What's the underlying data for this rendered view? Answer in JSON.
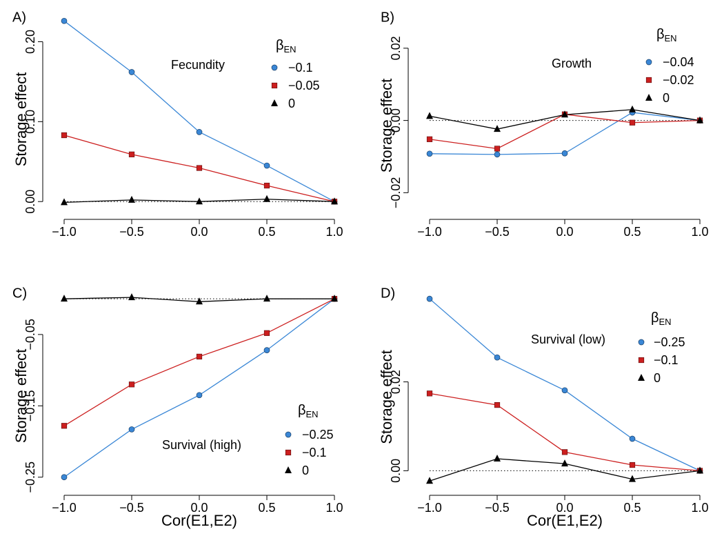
{
  "chart_data": [
    {
      "panel_label": "A)",
      "type": "line",
      "ylabel": "Storage effect",
      "xlabel": "",
      "x": [
        -1.0,
        -0.5,
        0.0,
        0.5,
        1.0
      ],
      "xticks": [
        "−1.0",
        "−0.5",
        "0.0",
        "0.5",
        "1.0"
      ],
      "xlim": [
        -1.0,
        1.0
      ],
      "ylim": [
        -0.005,
        0.228
      ],
      "yticks": [
        {
          "value": 0.0,
          "label": "0.00"
        },
        {
          "value": 0.1,
          "label": "0.10"
        },
        {
          "value": 0.2,
          "label": "0.20"
        }
      ],
      "annotation": "Fecundity",
      "legend_title": "β",
      "legend_title_sub": "EN",
      "series": [
        {
          "name": "−0.1",
          "color": "#3a87d6",
          "marker": "circle",
          "values": [
            0.226,
            0.162,
            0.087,
            0.045,
            0.0
          ]
        },
        {
          "name": "−0.05",
          "color": "#cc1f1f",
          "marker": "square",
          "values": [
            0.083,
            0.059,
            0.042,
            0.02,
            0.0
          ]
        },
        {
          "name": "0",
          "color": "#000000",
          "marker": "triangle",
          "values": [
            -0.001,
            0.002,
            0.0,
            0.003,
            0.0
          ]
        }
      ]
    },
    {
      "panel_label": "B)",
      "type": "line",
      "ylabel": "Storage effect",
      "xlabel": "",
      "x": [
        -1.0,
        -0.5,
        0.0,
        0.5,
        1.0
      ],
      "xticks": [
        "−1.0",
        "−0.5",
        "0.0",
        "0.5",
        "1.0"
      ],
      "xlim": [
        -1.0,
        1.0
      ],
      "ylim": [
        -0.027,
        0.028
      ],
      "yticks": [
        {
          "value": -0.02,
          "label": "−0.02"
        },
        {
          "value": 0.0,
          "label": "0.00"
        },
        {
          "value": 0.02,
          "label": "0.02"
        }
      ],
      "annotation": "Growth",
      "legend_title": "β",
      "legend_title_sub": "EN",
      "series": [
        {
          "name": "−0.04",
          "color": "#3a87d6",
          "marker": "circle",
          "values": [
            -0.0092,
            -0.0094,
            -0.0091,
            0.0022,
            0.0
          ]
        },
        {
          "name": "−0.02",
          "color": "#cc1f1f",
          "marker": "square",
          "values": [
            -0.0052,
            -0.0078,
            0.0017,
            -0.0006,
            0.0
          ]
        },
        {
          "name": "0",
          "color": "#000000",
          "marker": "triangle",
          "values": [
            0.0012,
            -0.0024,
            0.0016,
            0.003,
            0.0
          ]
        }
      ]
    },
    {
      "panel_label": "C)",
      "type": "line",
      "ylabel": "Storage effect",
      "xlabel": "Cor(E1,E2)",
      "x": [
        -1.0,
        -0.5,
        0.0,
        0.5,
        1.0
      ],
      "xticks": [
        "−1.0",
        "−0.5",
        "0.0",
        "0.5",
        "1.0"
      ],
      "xlim": [
        -1.0,
        1.0
      ],
      "ylim": [
        -0.258,
        0.005
      ],
      "yticks": [
        {
          "value": -0.25,
          "label": "−0.25"
        },
        {
          "value": -0.15,
          "label": "−0.15"
        },
        {
          "value": -0.05,
          "label": "−0.05"
        }
      ],
      "annotation": "Survival (high)",
      "legend_title": "β",
      "legend_title_sub": "EN",
      "series": [
        {
          "name": "−0.25",
          "color": "#3a87d6",
          "marker": "circle",
          "values": [
            -0.25,
            -0.183,
            -0.135,
            -0.072,
            0.0
          ]
        },
        {
          "name": "−0.1",
          "color": "#cc1f1f",
          "marker": "square",
          "values": [
            -0.178,
            -0.12,
            -0.081,
            -0.048,
            0.0
          ]
        },
        {
          "name": "0",
          "color": "#000000",
          "marker": "triangle",
          "values": [
            0.0,
            0.002,
            -0.004,
            0.0,
            0.0
          ]
        }
      ]
    },
    {
      "panel_label": "D)",
      "type": "line",
      "ylabel": "Storage effect",
      "xlabel": "Cor(E1,E2)",
      "x": [
        -1.0,
        -0.5,
        0.0,
        0.5,
        1.0
      ],
      "xticks": [
        "−1.0",
        "−0.5",
        "0.0",
        "0.5",
        "1.0"
      ],
      "xlim": [
        -1.0,
        1.0
      ],
      "ylim": [
        -0.0032,
        0.0395
      ],
      "yticks": [
        {
          "value": 0.0,
          "label": "0.00"
        },
        {
          "value": 0.02,
          "label": "0.02"
        }
      ],
      "annotation": "Survival (low)",
      "legend_title": "β",
      "legend_title_sub": "EN",
      "series": [
        {
          "name": "−0.25",
          "color": "#3a87d6",
          "marker": "circle",
          "values": [
            0.0387,
            0.0255,
            0.0181,
            0.0072,
            0.0
          ]
        },
        {
          "name": "−0.1",
          "color": "#cc1f1f",
          "marker": "square",
          "values": [
            0.0174,
            0.0148,
            0.0042,
            0.0013,
            0.0
          ]
        },
        {
          "name": "0",
          "color": "#000000",
          "marker": "triangle",
          "values": [
            -0.0023,
            0.0027,
            0.0016,
            -0.0019,
            0.0
          ]
        }
      ]
    }
  ]
}
